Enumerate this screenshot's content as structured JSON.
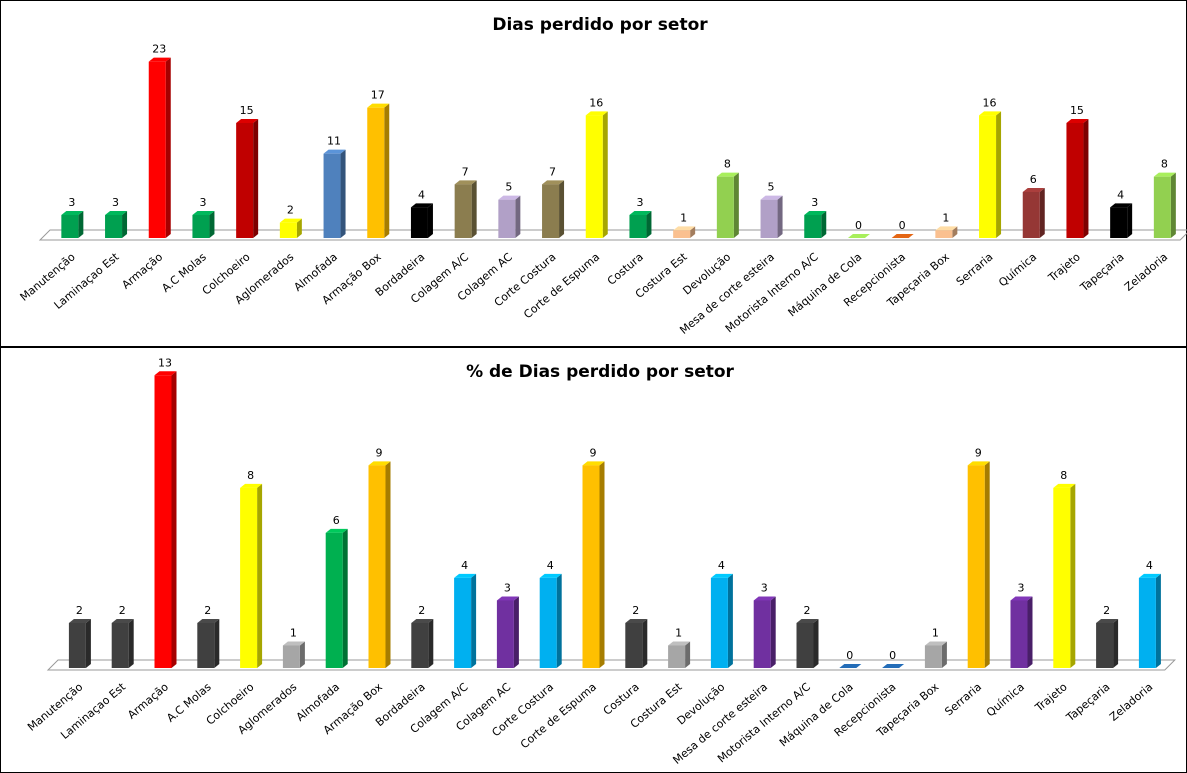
{
  "chart_data": [
    {
      "type": "bar",
      "title": "Dias perdido por setor",
      "categories": [
        "Manutenção",
        "Laminaçao Est",
        "Armação",
        "A.C Molas",
        "Colchoeiro",
        "Aglomerados",
        "Almofada",
        "Armação Box",
        "Bordadeira",
        "Colagem A/C",
        "Colagem AC",
        "Corte  Costura",
        "Corte de Espuma",
        "Costura",
        "Costura Est",
        "Devolução",
        "Mesa de corte esteira",
        "Motorista Interno A/C",
        "Máquina de Cola",
        "Recepcionista",
        "Tapeçaria Box",
        "Serraria",
        "Química",
        "Trajeto",
        "Tapeçaria",
        "Zeladoria"
      ],
      "values": [
        3,
        3,
        23,
        3,
        15,
        2,
        11,
        17,
        4,
        7,
        5,
        7,
        16,
        3,
        1,
        8,
        5,
        3,
        0,
        0,
        1,
        16,
        6,
        15,
        4,
        8
      ],
      "colors": [
        "#00a050",
        "#00a050",
        "#ff0000",
        "#00a050",
        "#c00000",
        "#ffff00",
        "#4f81bd",
        "#ffc000",
        "#000000",
        "#8b7d4f",
        "#b1a0c7",
        "#8b7d4f",
        "#ffff00",
        "#00a050",
        "#fac090",
        "#92d050",
        "#b1a0c7",
        "#00a050",
        "#92d050",
        "#c65911",
        "#fac090",
        "#ffff00",
        "#953735",
        "#c00000",
        "#000000",
        "#92d050"
      ],
      "ylim": [
        0,
        27
      ]
    },
    {
      "type": "bar",
      "title": "% de Dias perdido por setor",
      "categories": [
        "Manutenção",
        "Laminaçao Est",
        "Armação",
        "A.C Molas",
        "Colchoeiro",
        "Aglomerados",
        "Almofada",
        "Armação Box",
        "Bordadeira",
        "Colagem A/C",
        "Colagem AC",
        "Corte  Costura",
        "Corte de Espuma",
        "Costura",
        "Costura Est",
        "Devolução",
        "Mesa de corte esteira",
        "Motorista Interno A/C",
        "Máquina de Cola",
        "Recepcionista",
        "Tapeçaria Box",
        "Serraria",
        "Química",
        "Trajeto",
        "Tapeçaria",
        "Zeladoria"
      ],
      "values": [
        2,
        2,
        13,
        2,
        8,
        1,
        6,
        9,
        2,
        4,
        3,
        4,
        9,
        2,
        1,
        4,
        3,
        2,
        0,
        0,
        1,
        9,
        3,
        8,
        2,
        4
      ],
      "colors": [
        "#404040",
        "#404040",
        "#ff0000",
        "#404040",
        "#ffff00",
        "#a6a6a6",
        "#00b050",
        "#ffc000",
        "#404040",
        "#00b0f0",
        "#7030a0",
        "#00b0f0",
        "#ffc000",
        "#404040",
        "#a6a6a6",
        "#00b0f0",
        "#7030a0",
        "#404040",
        "#1f5fa0",
        "#1f5fa0",
        "#a6a6a6",
        "#ffc000",
        "#7030a0",
        "#ffff00",
        "#404040",
        "#00b0f0"
      ],
      "ylim": [
        0,
        13.5
      ]
    }
  ]
}
